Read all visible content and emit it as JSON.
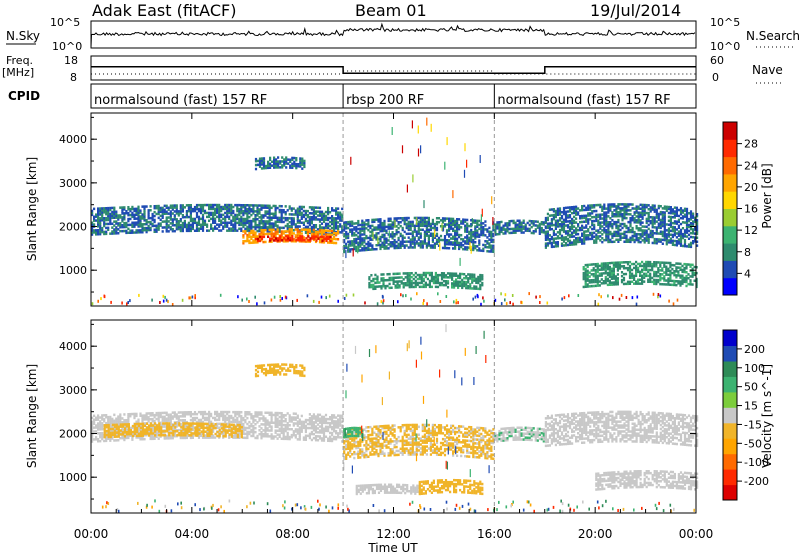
{
  "header": {
    "station": "Adak East (fitACF)",
    "beam": "Beam 01",
    "date": "19/Jul/2014"
  },
  "summary_panels": {
    "nsky_label": "N.Sky",
    "nsearch_label": "N.Search",
    "nsky_ticks": [
      "10^5",
      "10^0"
    ],
    "freq_label_line1": "Freq.",
    "freq_label_line2": "[MHz]",
    "freq_ticks": [
      "18",
      "8"
    ],
    "nave_label": "Nave",
    "nave_ticks": [
      "60",
      "0"
    ],
    "cpid_label": "CPID",
    "cpid_segments": [
      {
        "label": "normalsound (fast) 157 RF",
        "start": 0,
        "end": 10
      },
      {
        "label": "rbsp 200 RF",
        "start": 10,
        "end": 16
      },
      {
        "label": "normalsound (fast) 157 RF",
        "start": 16,
        "end": 24
      }
    ],
    "freq_steps_mhz": [
      {
        "start": 0,
        "end": 10,
        "value": 13.5
      },
      {
        "start": 10,
        "end": 18,
        "value": 10.8
      },
      {
        "start": 18,
        "end": 24,
        "value": 13.5
      }
    ]
  },
  "colors": {
    "power_scale": [
      "#0000ff",
      "#1f4bb4",
      "#2e8b6e",
      "#3cb371",
      "#9acd32",
      "#ffd700",
      "#ffa500",
      "#ff6a00",
      "#ff2a00",
      "#cc0000"
    ],
    "velocity_scale": [
      "#0000cc",
      "#1f4bb4",
      "#2e8b57",
      "#3cb371",
      "#7ccd3c",
      "#c8c8c8",
      "#f0b429",
      "#ffa500",
      "#ff6a00",
      "#ff2a00",
      "#dd0000"
    ],
    "axis": "#000000",
    "divider": "#999999"
  },
  "chart_data": [
    {
      "type": "heatmap",
      "name": "power",
      "ylabel": "Slant Range [km]",
      "xlim": [
        0,
        24
      ],
      "ylim": [
        180,
        4600
      ],
      "yticks": [
        1000,
        2000,
        3000,
        4000
      ],
      "colorbar_label": "Power [dB]",
      "colorbar_ticks": [
        28,
        24,
        20,
        16,
        12,
        8,
        4
      ],
      "colorbar_range": [
        0,
        30
      ],
      "features": [
        {
          "t0": 0.0,
          "t1": 10.0,
          "r0": 1800,
          "r1": 2400,
          "value": 6
        },
        {
          "t0": 6.0,
          "t1": 9.8,
          "r0": 1600,
          "r1": 1900,
          "value": 20
        },
        {
          "t0": 6.5,
          "t1": 9.5,
          "r0": 1650,
          "r1": 1780,
          "value": 26
        },
        {
          "t0": 6.5,
          "t1": 8.5,
          "r0": 3300,
          "r1": 3550,
          "value": 6
        },
        {
          "t0": 10.0,
          "t1": 16.0,
          "r0": 1400,
          "r1": 2100,
          "value": 6
        },
        {
          "t0": 11.0,
          "t1": 15.5,
          "r0": 550,
          "r1": 900,
          "value": 8
        },
        {
          "t0": 16.0,
          "t1": 18.0,
          "r0": 1800,
          "r1": 2100,
          "value": 6
        },
        {
          "t0": 18.0,
          "t1": 24.0,
          "r0": 1500,
          "r1": 2400,
          "value": 6
        },
        {
          "t0": 19.5,
          "t1": 24.0,
          "r0": 600,
          "r1": 1100,
          "value": 8
        }
      ]
    },
    {
      "type": "heatmap",
      "name": "velocity",
      "xlabel": "Time UT",
      "ylabel": "Slant Range [km]",
      "xlim": [
        0,
        24
      ],
      "ylim": [
        180,
        4600
      ],
      "xticks": [
        "00:00",
        "04:00",
        "08:00",
        "12:00",
        "16:00",
        "20:00",
        "00:00"
      ],
      "yticks": [
        1000,
        2000,
        3000,
        4000
      ],
      "colorbar_label": "Velocity [m s^-1]",
      "colorbar_ticks": [
        200,
        100,
        50,
        15,
        -15,
        -50,
        -100,
        -200
      ],
      "features": [
        {
          "t0": 0.0,
          "t1": 10.0,
          "r0": 1800,
          "r1": 2400,
          "value": -5
        },
        {
          "t0": 0.5,
          "t1": 6.0,
          "r0": 1900,
          "r1": 2200,
          "value": -40
        },
        {
          "t0": 6.5,
          "t1": 8.5,
          "r0": 3300,
          "r1": 3550,
          "value": -40
        },
        {
          "t0": 10.0,
          "t1": 16.0,
          "r0": 1400,
          "r1": 2100,
          "value": -20
        },
        {
          "t0": 10.0,
          "t1": 10.8,
          "r0": 1900,
          "r1": 2100,
          "value": 30
        },
        {
          "t0": 10.5,
          "t1": 13.0,
          "r0": 600,
          "r1": 800,
          "value": -5
        },
        {
          "t0": 13.0,
          "t1": 15.5,
          "r0": 600,
          "r1": 900,
          "value": -40
        },
        {
          "t0": 16.0,
          "t1": 18.0,
          "r0": 1800,
          "r1": 2100,
          "value": 10
        },
        {
          "t0": 18.0,
          "t1": 24.0,
          "r0": 1700,
          "r1": 2400,
          "value": -5
        },
        {
          "t0": 20.0,
          "t1": 24.0,
          "r0": 700,
          "r1": 1100,
          "value": -5
        }
      ]
    }
  ]
}
